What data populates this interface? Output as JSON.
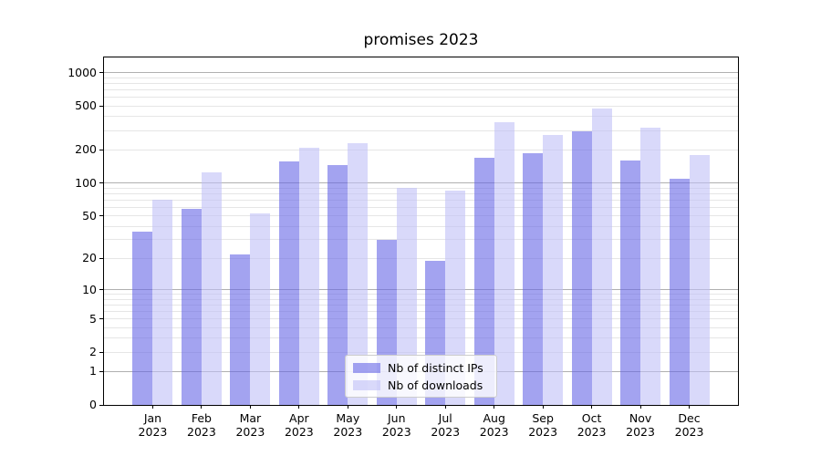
{
  "title": "promises 2023",
  "chart_data": {
    "type": "bar",
    "title": "promises 2023",
    "categories": [
      "Jan",
      "Feb",
      "Mar",
      "Apr",
      "May",
      "Jun",
      "Jul",
      "Aug",
      "Sep",
      "Oct",
      "Nov",
      "Dec"
    ],
    "year": "2023",
    "series": [
      {
        "name": "Nb of distinct IPs",
        "color": "rgba(102,102,230,0.6)",
        "values": [
          36,
          58,
          22,
          156,
          147,
          30,
          19,
          171,
          185,
          295,
          160,
          110
        ]
      },
      {
        "name": "Nb of downloads",
        "color": "rgba(192,192,247,0.6)",
        "values": [
          70,
          125,
          53,
          208,
          230,
          90,
          86,
          355,
          275,
          478,
          320,
          180
        ]
      }
    ],
    "y_scale": "log1p",
    "yticks": [
      0,
      1,
      2,
      5,
      10,
      20,
      50,
      100,
      200,
      500,
      1000
    ],
    "major_gridlines": [
      1,
      10,
      100,
      1000
    ],
    "minor_gridlines": [
      2,
      3,
      4,
      5,
      6,
      7,
      8,
      9,
      20,
      30,
      40,
      50,
      60,
      70,
      80,
      90,
      200,
      300,
      400,
      500,
      600,
      700,
      800,
      900
    ],
    "ylim": [
      0,
      1370
    ],
    "grid": true,
    "legend_position": "lower center",
    "colors": {
      "major_grid": "#b0b0b0",
      "minor_grid": "#e6e6e6",
      "axis": "#000000",
      "background": "#ffffff"
    }
  }
}
